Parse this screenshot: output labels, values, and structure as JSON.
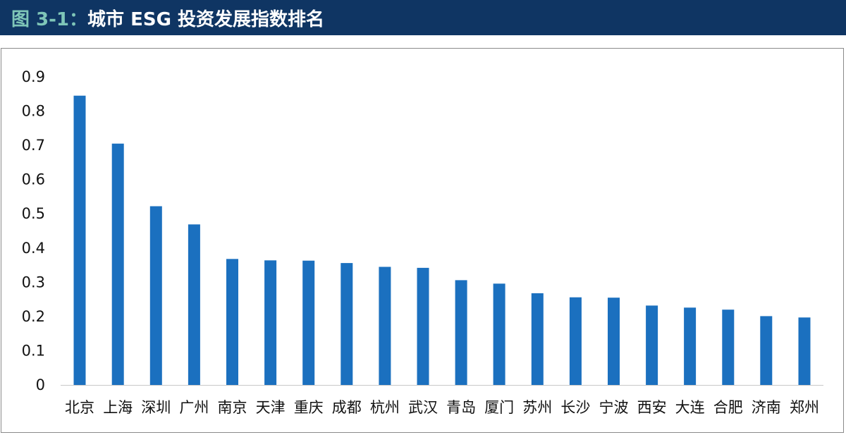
{
  "header": {
    "figure_label": "图 3-1：",
    "title": "城市 ESG 投资发展指数排名",
    "label_color": "#7fc6b8",
    "background_color": "#0f3563"
  },
  "chart_data": {
    "type": "bar",
    "title": "城市 ESG 投资发展指数排名",
    "xlabel": "",
    "ylabel": "",
    "ylim": [
      0,
      0.9
    ],
    "yticks": [
      "0",
      "0.1",
      "0.2",
      "0.3",
      "0.4",
      "0.5",
      "0.6",
      "0.7",
      "0.8",
      "0.9"
    ],
    "grid": false,
    "legend": "none",
    "bar_color": "#1b70bf",
    "categories": [
      "北京",
      "上海",
      "深圳",
      "广州",
      "南京",
      "天津",
      "重庆",
      "成都",
      "杭州",
      "武汉",
      "青岛",
      "厦门",
      "苏州",
      "长沙",
      "宁波",
      "西安",
      "大连",
      "合肥",
      "济南",
      "郑州"
    ],
    "values": [
      0.845,
      0.705,
      0.522,
      0.469,
      0.368,
      0.364,
      0.363,
      0.356,
      0.345,
      0.342,
      0.306,
      0.296,
      0.268,
      0.256,
      0.255,
      0.232,
      0.226,
      0.22,
      0.201,
      0.197
    ]
  }
}
